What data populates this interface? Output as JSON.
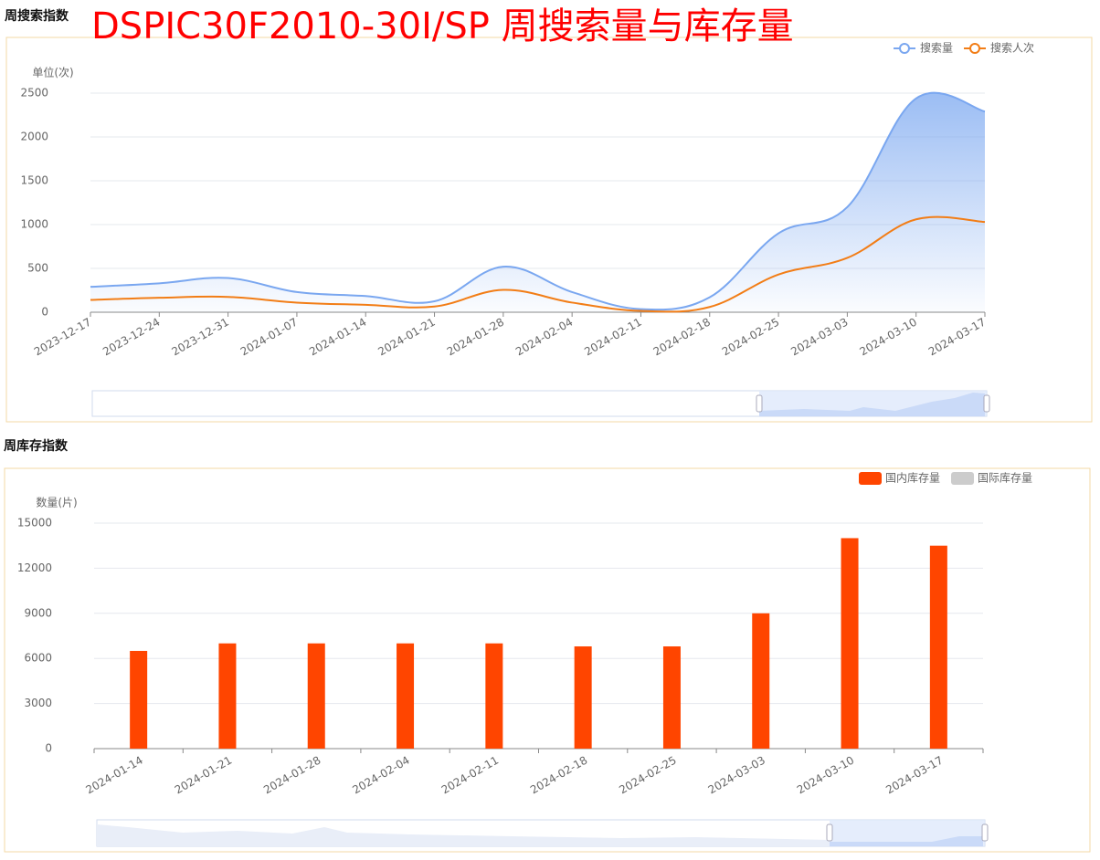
{
  "title": "DSPIC30F2010-30I/SP 周搜索量与库存量",
  "chart_data": [
    {
      "type": "line",
      "title": "周搜索指数",
      "y_label": "单位(次)",
      "x": [
        "2023-12-17",
        "2023-12-24",
        "2023-12-31",
        "2024-01-07",
        "2024-01-14",
        "2024-01-21",
        "2024-01-28",
        "2024-02-04",
        "2024-02-11",
        "2024-02-18",
        "2024-02-25",
        "2024-03-03",
        "2024-03-10",
        "2024-03-17"
      ],
      "series": [
        {
          "name": "搜索量",
          "color": "#7aa7f0",
          "area": true,
          "values": [
            290,
            330,
            390,
            230,
            185,
            125,
            520,
            230,
            35,
            170,
            900,
            1200,
            2440,
            2290
          ]
        },
        {
          "name": "搜索人次",
          "color": "#f27d16",
          "values": [
            140,
            165,
            175,
            110,
            85,
            65,
            255,
            110,
            15,
            60,
            430,
            620,
            1060,
            1030
          ]
        }
      ],
      "ylim": [
        0,
        2500
      ],
      "yticks": [
        0,
        500,
        1000,
        1500,
        2000,
        2500
      ],
      "grid": true,
      "smooth": true,
      "legend": "top-right"
    },
    {
      "type": "bar",
      "title": "周库存指数",
      "y_label": "数量(片)",
      "categories": [
        "2024-01-14",
        "2024-01-21",
        "2024-01-28",
        "2024-02-04",
        "2024-02-11",
        "2024-02-18",
        "2024-02-25",
        "2024-03-03",
        "2024-03-10",
        "2024-03-17"
      ],
      "series": [
        {
          "name": "国内库存量",
          "color": "#ff4500",
          "values": [
            6500,
            7000,
            7000,
            7000,
            7000,
            6800,
            6800,
            9000,
            14000,
            13500
          ]
        },
        {
          "name": "国际库存量",
          "color": "#cccccc",
          "visible": false,
          "values": [
            null,
            null,
            null,
            null,
            null,
            null,
            null,
            null,
            null,
            null
          ]
        }
      ],
      "ylim": [
        0,
        15000
      ],
      "yticks": [
        0,
        3000,
        6000,
        9000,
        12000,
        15000
      ],
      "grid": true,
      "legend": "top-right"
    }
  ]
}
